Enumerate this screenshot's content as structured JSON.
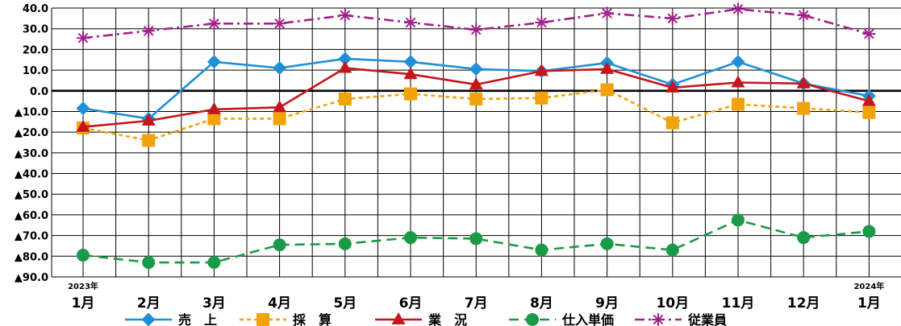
{
  "chart_data": {
    "type": "line",
    "categories": [
      "1月",
      "2月",
      "3月",
      "4月",
      "5月",
      "6月",
      "7月",
      "8月",
      "9月",
      "10月",
      "11月",
      "12月",
      "1月"
    ],
    "year_notes": [
      {
        "category_index": 0,
        "text": "2023年"
      },
      {
        "category_index": 12,
        "text": "2024年"
      }
    ],
    "ylim": [
      -90,
      40
    ],
    "y_tick_labels": [
      "40.0",
      "30.0",
      "20.0",
      "10.0",
      "0.0",
      "▲10.0",
      "▲20.0",
      "▲30.0",
      "▲40.0",
      "▲50.0",
      "▲60.0",
      "▲70.0",
      "▲80.0",
      "▲90.0"
    ],
    "y_ticks": [
      40,
      30,
      20,
      10,
      0,
      -10,
      -20,
      -30,
      -40,
      -50,
      -60,
      -70,
      -80,
      -90
    ],
    "grid": true,
    "legend_position": "bottom",
    "series": [
      {
        "name": "売　上",
        "color": "#1f8fd6",
        "marker": "diamond",
        "dash": "solid",
        "values": [
          -8.5,
          -13.5,
          14.0,
          11.0,
          15.5,
          14.0,
          10.5,
          9.5,
          13.5,
          3.0,
          14.0,
          3.5,
          -2.5
        ]
      },
      {
        "name": "採　算",
        "color": "#f0a30a",
        "marker": "square",
        "dash": "dashed",
        "values": [
          -18.0,
          -24.0,
          -13.5,
          -13.5,
          -4.0,
          -1.5,
          -4.0,
          -3.5,
          0.5,
          -15.5,
          -6.5,
          -8.5,
          -10.5
        ]
      },
      {
        "name": "業　況",
        "color": "#c4161c",
        "marker": "triangle",
        "dash": "solid",
        "values": [
          -17.5,
          -14.5,
          -9.0,
          -8.0,
          11.0,
          8.0,
          3.0,
          9.5,
          10.5,
          1.5,
          4.0,
          3.5,
          -5.0
        ]
      },
      {
        "name": "仕入単価",
        "color": "#1a9a46",
        "marker": "circle",
        "dash": "longdash",
        "values": [
          -79.5,
          -83.0,
          -83.0,
          -74.5,
          -74.0,
          -71.0,
          -71.5,
          -77.0,
          -74.0,
          -77.0,
          -62.5,
          -71.0,
          -68.0
        ]
      },
      {
        "name": "従業員",
        "color": "#a0228a",
        "marker": "asterisk",
        "dash": "dashdot",
        "values": [
          25.5,
          29.0,
          32.5,
          32.5,
          36.5,
          33.0,
          29.5,
          33.0,
          37.5,
          35.0,
          39.5,
          36.5,
          27.5
        ]
      }
    ]
  }
}
